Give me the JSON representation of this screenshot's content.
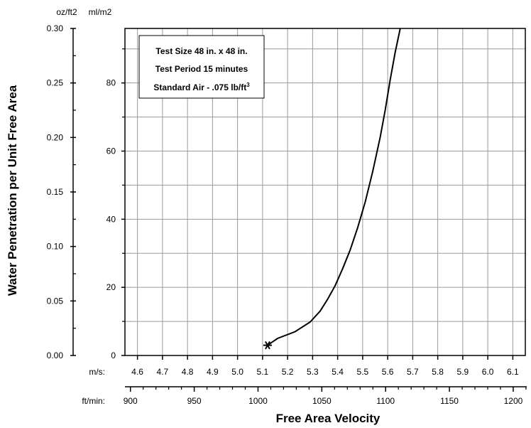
{
  "chart_data": {
    "type": "line",
    "xlabel": "Free Area Velocity",
    "ylabel": "Water Penetration per Unit Free Area",
    "axes": {
      "x_primary": {
        "unit": "m/s:",
        "range": [
          4.55,
          6.15
        ],
        "ticks": [
          4.6,
          4.7,
          4.8,
          4.9,
          5.0,
          5.1,
          5.2,
          5.3,
          5.4,
          5.5,
          5.6,
          5.7,
          5.8,
          5.9,
          6.0,
          6.1
        ],
        "tick_labels": [
          "4.6",
          "4.7",
          "4.8",
          "4.9",
          "5.0",
          "5.1",
          "5.2",
          "5.3",
          "5.4",
          "5.5",
          "5.6",
          "5.7",
          "5.8",
          "5.9",
          "6.0",
          "6.1"
        ]
      },
      "x_secondary": {
        "unit": "ft/min:",
        "range": [
          895.7,
          1210.6
        ],
        "ticks": [
          900,
          950,
          1000,
          1050,
          1100,
          1150,
          1200
        ],
        "tick_labels": [
          "900",
          "950",
          "1000",
          "1050",
          "1100",
          "1150",
          "1200"
        ],
        "minor_step": 10
      },
      "y_primary": {
        "unit": "ml/m2",
        "range": [
          0,
          96
        ],
        "ticks": [
          0,
          20,
          40,
          60,
          80
        ],
        "tick_labels": [
          "0",
          "20",
          "40",
          "60",
          "80"
        ]
      },
      "y_secondary": {
        "unit": "oz/ft2",
        "range": [
          0,
          0.3
        ],
        "ticks": [
          0.0,
          0.05,
          0.1,
          0.15,
          0.2,
          0.25,
          0.3
        ],
        "tick_labels": [
          "0.00",
          "0.05",
          "0.10",
          "0.15",
          "0.20",
          "0.25",
          "0.30"
        ]
      }
    },
    "grid": true,
    "series": [
      {
        "x": [
          5.12,
          5.16,
          5.23,
          5.29,
          5.33,
          5.36,
          5.39,
          5.42,
          5.45,
          5.48,
          5.51,
          5.54,
          5.57,
          5.59,
          5.61,
          5.63,
          5.65
        ],
        "y": [
          3,
          5,
          7,
          9.8,
          13,
          16.5,
          20.5,
          25.5,
          31,
          37.5,
          45,
          54,
          64,
          72,
          81,
          89,
          96
        ],
        "marker_start": "asterisk"
      }
    ],
    "annotation": {
      "lines": [
        {
          "text": "Test Size 48 in. x 48 in."
        },
        {
          "text": "Test Period 15 minutes"
        },
        {
          "text": "Standard Air - .075 lb/ft",
          "sup": "3"
        }
      ]
    }
  },
  "style": {
    "line_color": "#000000",
    "grid_color": "#9a9a9a",
    "axis_color": "#000000"
  }
}
